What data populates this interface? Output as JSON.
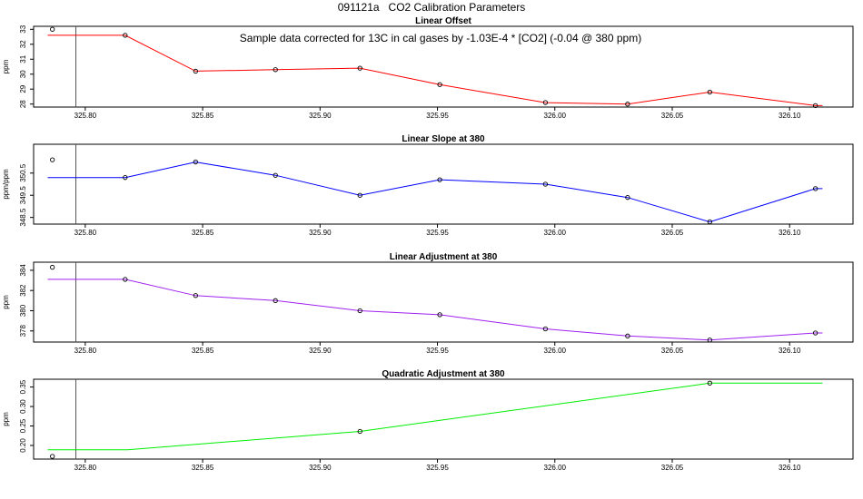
{
  "figure": {
    "title": "091121a   CO2 Calibration Parameters",
    "annotation": "Sample data corrected for 13C in cal gases by -1.03E-4 * [CO2] (-0.04 @ 380 ppm)"
  },
  "chart_data": [
    {
      "type": "line",
      "title": "Linear Offset",
      "ylabel": "ppm",
      "color": "#ff0000",
      "xlim": [
        325.778,
        326.127
      ],
      "ylim": [
        27.8,
        33.2
      ],
      "x_ticks": [
        "325.80",
        "325.85",
        "325.90",
        "325.95",
        "326.00",
        "326.05",
        "326.10"
      ],
      "y_ticks": [
        "28",
        "29",
        "30",
        "31",
        "32",
        "33"
      ],
      "vline_x": 325.796,
      "line_x": [
        325.784,
        325.817,
        325.847,
        325.881,
        325.917,
        325.951,
        325.996,
        326.031,
        326.066,
        326.111,
        326.114
      ],
      "line_y": [
        32.6,
        32.6,
        30.2,
        30.3,
        30.4,
        29.3,
        28.1,
        28.0,
        28.8,
        27.9,
        27.9
      ],
      "points_x": [
        325.786,
        325.817,
        325.847,
        325.881,
        325.917,
        325.951,
        325.996,
        326.031,
        326.066,
        326.111
      ],
      "points_y": [
        33.0,
        32.6,
        30.2,
        30.3,
        30.4,
        29.3,
        28.1,
        28.0,
        28.8,
        27.9
      ]
    },
    {
      "type": "line",
      "title": "Linear Slope at 380",
      "ylabel": "ppm/ppm",
      "color": "#0000ff",
      "xlim": [
        325.778,
        326.127
      ],
      "ylim": [
        348.2,
        351.8
      ],
      "x_ticks": [
        "325.80",
        "325.85",
        "325.90",
        "325.95",
        "326.00",
        "326.05",
        "326.10"
      ],
      "y_ticks": [
        "348.5",
        "349.5",
        "350.5"
      ],
      "vline_x": 325.796,
      "line_x": [
        325.784,
        325.817,
        325.847,
        325.881,
        325.917,
        325.951,
        325.996,
        326.031,
        326.066,
        326.111,
        326.114
      ],
      "line_y": [
        350.3,
        350.3,
        351.0,
        350.4,
        349.5,
        350.2,
        350.0,
        349.4,
        348.3,
        349.8,
        349.8
      ],
      "points_x": [
        325.786,
        325.817,
        325.847,
        325.881,
        325.917,
        325.951,
        325.996,
        326.031,
        326.066,
        326.111
      ],
      "points_y": [
        351.1,
        350.3,
        351.0,
        350.4,
        349.5,
        350.2,
        350.0,
        349.4,
        348.3,
        349.8
      ]
    },
    {
      "type": "line",
      "title": "Linear Adjustment at 380",
      "ylabel": "ppm",
      "color": "#a020f0",
      "xlim": [
        325.778,
        326.127
      ],
      "ylim": [
        376.9,
        384.8
      ],
      "x_ticks": [
        "325.80",
        "325.85",
        "325.90",
        "325.95",
        "326.00",
        "326.05",
        "326.10"
      ],
      "y_ticks": [
        "378",
        "380",
        "382",
        "384"
      ],
      "vline_x": 325.796,
      "line_x": [
        325.784,
        325.817,
        325.847,
        325.881,
        325.917,
        325.951,
        325.996,
        326.031,
        326.066,
        326.111,
        326.114
      ],
      "line_y": [
        383.1,
        383.1,
        381.5,
        381.0,
        380.0,
        379.6,
        378.2,
        377.5,
        377.1,
        377.8,
        377.8
      ],
      "points_x": [
        325.786,
        325.817,
        325.847,
        325.881,
        325.917,
        325.951,
        325.996,
        326.031,
        326.066,
        326.111
      ],
      "points_y": [
        384.3,
        383.1,
        381.5,
        381.0,
        380.0,
        379.6,
        378.2,
        377.5,
        377.1,
        377.8
      ]
    },
    {
      "type": "line",
      "title": "Quadratic Adjustment at 380",
      "ylabel": "ppm",
      "color": "#00ee00",
      "xlim": [
        325.778,
        326.127
      ],
      "ylim": [
        0.165,
        0.37
      ],
      "x_ticks": [
        "325.80",
        "325.85",
        "325.90",
        "325.95",
        "326.00",
        "326.05",
        "326.10"
      ],
      "y_ticks": [
        "0.20",
        "0.25",
        "0.30",
        "0.35"
      ],
      "vline_x": 325.796,
      "line_x": [
        325.784,
        325.818,
        325.917,
        326.066,
        326.114
      ],
      "line_y": [
        0.189,
        0.189,
        0.236,
        0.36,
        0.36
      ],
      "points_x": [
        325.786,
        325.917,
        326.066
      ],
      "points_y": [
        0.172,
        0.236,
        0.36
      ]
    }
  ]
}
